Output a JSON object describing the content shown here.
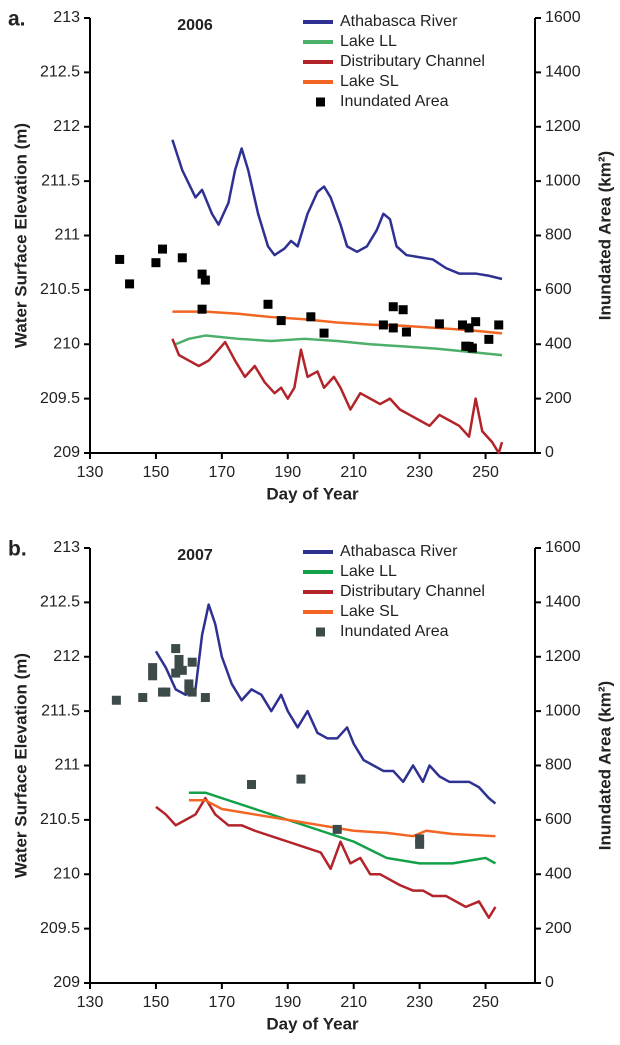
{
  "chart_data": [
    {
      "type": "line",
      "panel_label": "a.",
      "title": "2006",
      "xlabel": "Day of Year",
      "ylabel": "Water Surface Elevation (m)",
      "y2label": "Inundated Area (km²)",
      "xlim": [
        130,
        265
      ],
      "xticks": [
        130,
        150,
        170,
        190,
        210,
        230,
        250
      ],
      "ylim": [
        209,
        213
      ],
      "yticks": [
        209,
        209.5,
        210,
        210.5,
        211,
        211.5,
        212,
        212.5,
        213
      ],
      "y2lim": [
        0,
        1600
      ],
      "y2ticks": [
        0,
        200,
        400,
        600,
        800,
        1000,
        1200,
        1400,
        1600
      ],
      "series": [
        {
          "name": "Athabasca River",
          "color": "#2e3192",
          "type": "line",
          "x": [
            155,
            158,
            162,
            164,
            167,
            169,
            172,
            174,
            176,
            178,
            181,
            184,
            186,
            189,
            191,
            193,
            196,
            199,
            201,
            203,
            206,
            208,
            211,
            214,
            217,
            219,
            221,
            223,
            226,
            230,
            234,
            238,
            242,
            247,
            251,
            255
          ],
          "values": [
            211.88,
            211.6,
            211.35,
            211.42,
            211.2,
            211.1,
            211.3,
            211.6,
            211.8,
            211.6,
            211.2,
            210.9,
            210.82,
            210.88,
            210.95,
            210.9,
            211.2,
            211.4,
            211.45,
            211.35,
            211.1,
            210.9,
            210.85,
            210.9,
            211.05,
            211.2,
            211.15,
            210.9,
            210.82,
            210.8,
            210.78,
            210.7,
            210.65,
            210.65,
            210.63,
            210.6
          ]
        },
        {
          "name": "Lake LL",
          "color": "#4caf6a",
          "type": "line",
          "x": [
            156,
            160,
            165,
            175,
            185,
            195,
            205,
            215,
            225,
            235,
            245,
            255
          ],
          "values": [
            210.0,
            210.05,
            210.08,
            210.05,
            210.03,
            210.05,
            210.03,
            210.0,
            209.98,
            209.96,
            209.93,
            209.9
          ]
        },
        {
          "name": "Distributary Channel",
          "color": "#b2232a",
          "type": "line",
          "x": [
            155,
            157,
            160,
            163,
            166,
            169,
            171,
            174,
            177,
            180,
            183,
            186,
            188,
            190,
            192,
            194,
            196,
            199,
            201,
            204,
            206,
            209,
            212,
            215,
            218,
            221,
            224,
            227,
            230,
            233,
            236,
            239,
            242,
            245,
            247,
            249,
            252,
            254,
            255
          ],
          "values": [
            210.05,
            209.9,
            209.85,
            209.8,
            209.85,
            209.95,
            210.02,
            209.85,
            209.7,
            209.8,
            209.65,
            209.55,
            209.6,
            209.5,
            209.6,
            209.95,
            209.7,
            209.75,
            209.6,
            209.7,
            209.6,
            209.4,
            209.55,
            209.5,
            209.45,
            209.5,
            209.4,
            209.35,
            209.3,
            209.25,
            209.35,
            209.3,
            209.25,
            209.15,
            209.5,
            209.2,
            209.1,
            209.0,
            209.1
          ]
        },
        {
          "name": "Lake SL",
          "color": "#f26522",
          "type": "line",
          "x": [
            155,
            165,
            175,
            185,
            195,
            205,
            215,
            225,
            235,
            245,
            255
          ],
          "values": [
            210.3,
            210.3,
            210.28,
            210.25,
            210.23,
            210.2,
            210.18,
            210.17,
            210.15,
            210.13,
            210.1
          ]
        },
        {
          "name": "Inundated Area",
          "color": "#000000",
          "type": "scatter",
          "axis": "y2",
          "x": [
            139,
            142,
            150,
            152,
            158,
            164,
            165,
            164,
            184,
            188,
            197,
            201,
            219,
            222,
            222,
            225,
            226,
            236,
            243,
            244,
            245,
            245,
            246,
            247,
            251,
            254
          ],
          "values": [
            712,
            622,
            700,
            750,
            718,
            658,
            636,
            529,
            547,
            487,
            501,
            441,
            471,
            538,
            460,
            527,
            445,
            475,
            471,
            393,
            460,
            392,
            386,
            483,
            418,
            471
          ]
        }
      ]
    },
    {
      "type": "line",
      "panel_label": "b.",
      "title": "2007",
      "xlabel": "Day of Year",
      "ylabel": "Water Surface Elevation (m)",
      "y2label": "Inundated Area (km²)",
      "xlim": [
        130,
        265
      ],
      "xticks": [
        130,
        150,
        170,
        190,
        210,
        230,
        250
      ],
      "ylim": [
        209,
        213
      ],
      "yticks": [
        209,
        209.5,
        210,
        210.5,
        211,
        211.5,
        212,
        212.5,
        213
      ],
      "y2lim": [
        0,
        1600
      ],
      "y2ticks": [
        0,
        200,
        400,
        600,
        800,
        1000,
        1200,
        1400,
        1600
      ],
      "series": [
        {
          "name": "Athabasca River",
          "color": "#2e3192",
          "type": "line",
          "x": [
            150,
            153,
            156,
            159,
            162,
            164,
            166,
            168,
            170,
            173,
            176,
            179,
            182,
            185,
            188,
            190,
            193,
            196,
            199,
            202,
            205,
            208,
            210,
            213,
            216,
            219,
            222,
            225,
            228,
            231,
            233,
            236,
            239,
            242,
            245,
            248,
            251,
            253
          ],
          "values": [
            212.05,
            211.9,
            211.7,
            211.65,
            211.7,
            212.2,
            212.48,
            212.3,
            212.0,
            211.75,
            211.6,
            211.7,
            211.65,
            211.5,
            211.65,
            211.5,
            211.35,
            211.5,
            211.3,
            211.25,
            211.25,
            211.35,
            211.2,
            211.05,
            211.0,
            210.95,
            210.95,
            210.85,
            211.0,
            210.85,
            211.0,
            210.9,
            210.85,
            210.85,
            210.85,
            210.8,
            210.7,
            210.65
          ]
        },
        {
          "name": "Lake LL",
          "color": "#12a048",
          "type": "line",
          "x": [
            160,
            165,
            170,
            180,
            190,
            200,
            210,
            220,
            230,
            240,
            250,
            253
          ],
          "values": [
            210.75,
            210.75,
            210.7,
            210.6,
            210.5,
            210.4,
            210.3,
            210.15,
            210.1,
            210.1,
            210.15,
            210.1
          ]
        },
        {
          "name": "Distributary Channel",
          "color": "#b2232a",
          "type": "line",
          "x": [
            150,
            153,
            156,
            159,
            162,
            165,
            168,
            172,
            176,
            180,
            185,
            190,
            195,
            200,
            203,
            206,
            209,
            212,
            215,
            218,
            221,
            224,
            228,
            231,
            234,
            238,
            241,
            244,
            248,
            251,
            253
          ],
          "values": [
            210.62,
            210.55,
            210.45,
            210.5,
            210.55,
            210.7,
            210.55,
            210.45,
            210.45,
            210.4,
            210.35,
            210.3,
            210.25,
            210.2,
            210.05,
            210.3,
            210.1,
            210.15,
            210.0,
            210.0,
            209.95,
            209.9,
            209.85,
            209.85,
            209.8,
            209.8,
            209.75,
            209.7,
            209.75,
            209.6,
            209.7
          ]
        },
        {
          "name": "Lake SL",
          "color": "#f26522",
          "type": "line",
          "x": [
            160,
            165,
            170,
            180,
            190,
            200,
            210,
            220,
            228,
            232,
            240,
            253
          ],
          "values": [
            210.68,
            210.68,
            210.6,
            210.55,
            210.5,
            210.45,
            210.4,
            210.38,
            210.35,
            210.4,
            210.37,
            210.35
          ]
        },
        {
          "name": "Inundated Area",
          "color": "#3d4a4a",
          "type": "scatter",
          "axis": "y2",
          "x": [
            138,
            146,
            149,
            149,
            152,
            153,
            156,
            156,
            157,
            157,
            158,
            160,
            160,
            161,
            161,
            165,
            179,
            194,
            205,
            230,
            230
          ],
          "values": [
            1040,
            1050,
            1130,
            1160,
            1070,
            1070,
            1140,
            1230,
            1170,
            1190,
            1150,
            1100,
            1080,
            1070,
            1180,
            1050,
            730,
            750,
            565,
            530,
            510
          ]
        }
      ]
    }
  ]
}
